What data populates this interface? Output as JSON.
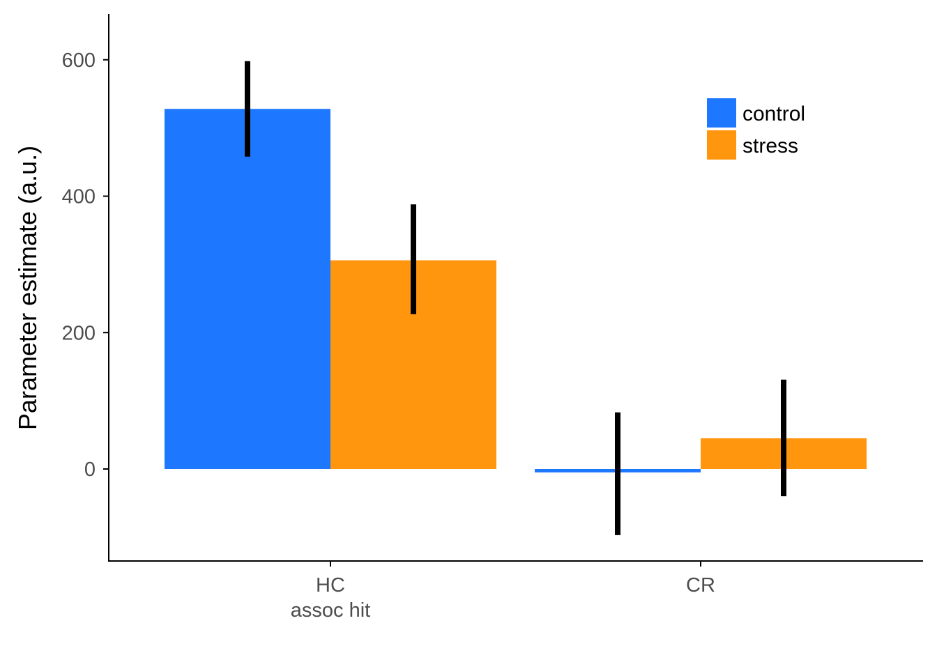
{
  "chart_data": {
    "type": "bar",
    "title": "",
    "xlabel": "",
    "ylabel": "Parameter estimate (a.u.)",
    "categories": [
      "HC\nassoc hit",
      "CR"
    ],
    "category_lines": [
      [
        "HC",
        "assoc hit"
      ],
      [
        "CR"
      ]
    ],
    "series": [
      {
        "name": "control",
        "color": "#1E78FF",
        "values": [
          528,
          -5
        ],
        "error_low": [
          458,
          -97
        ],
        "error_high": [
          598,
          83
        ]
      },
      {
        "name": "stress",
        "color": "#FF960D",
        "values": [
          306,
          45
        ],
        "error_low": [
          227,
          -40
        ],
        "error_high": [
          388,
          131
        ]
      }
    ],
    "ylim": [
      -128,
      635
    ],
    "yticks": [
      0,
      200,
      400,
      600
    ],
    "grid": false,
    "legend_position": "top-right",
    "error_bar_color": "#000000"
  }
}
